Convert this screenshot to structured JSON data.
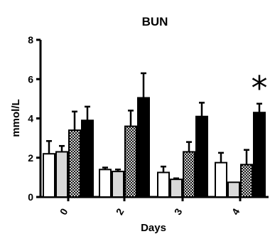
{
  "chart_data": {
    "type": "bar",
    "title": "BUN",
    "xlabel": "Days",
    "ylabel": "mmol/L",
    "ylim": [
      0,
      8
    ],
    "yticks": [
      "0",
      "2",
      "4",
      "6",
      "8"
    ],
    "categories": [
      "0",
      "2",
      "3",
      "4"
    ],
    "series": [
      {
        "values": [
          2.2,
          1.4,
          1.25,
          1.75
        ],
        "errors": [
          0.65,
          0.1,
          0.3,
          0.5
        ],
        "fill": "white"
      },
      {
        "values": [
          2.3,
          1.3,
          0.9,
          0.75
        ],
        "errors": [
          0.3,
          0.1,
          0.05,
          0.0
        ],
        "fill": "lightgray"
      },
      {
        "values": [
          3.4,
          3.6,
          2.3,
          1.65
        ],
        "errors": [
          0.95,
          0.8,
          0.5,
          0.75
        ],
        "fill": "checkered"
      },
      {
        "values": [
          3.9,
          5.05,
          4.1,
          4.3
        ],
        "errors": [
          0.7,
          1.25,
          0.7,
          0.45
        ],
        "fill": "black"
      }
    ],
    "annotations": [
      {
        "text": "*",
        "category": "4"
      }
    ],
    "grid": false,
    "legend": "none"
  },
  "colors": {
    "white": "#ffffff",
    "lightgray": "#d9d9d9",
    "black": "#000000",
    "check_dark": "#1a1a1a",
    "check_light": "#d0d0d0"
  }
}
